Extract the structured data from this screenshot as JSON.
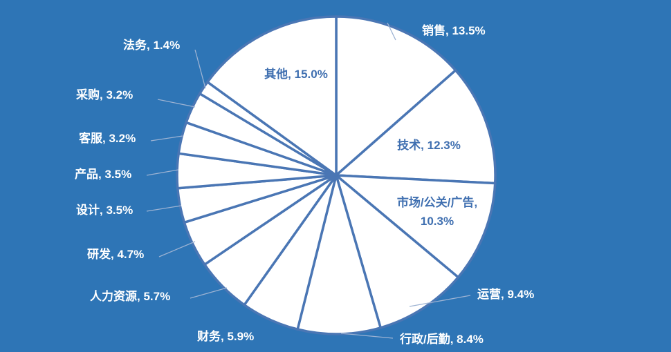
{
  "chart_data": {
    "type": "pie",
    "background_color": "#2e75b6",
    "slice_color": "#ffffff",
    "border_color": "#4a76b4",
    "inside_label_color": "#3f6fb0",
    "outside_label_color": "#ffffff",
    "leader_line_color": "#9db3d3",
    "start": "12 o'clock",
    "direction": "clockwise",
    "slices": [
      {
        "name": "销售",
        "value": 13.5,
        "label": "销售, 13.5%"
      },
      {
        "name": "技术",
        "value": 12.3,
        "label": "技术, 12.3%"
      },
      {
        "name": "市场/公关/广告",
        "value": 10.3,
        "label": "市场/公关/广告,",
        "label2": "10.3%"
      },
      {
        "name": "运营",
        "value": 9.4,
        "label": "运营, 9.4%"
      },
      {
        "name": "行政/后勤",
        "value": 8.4,
        "label": "行政/后勤, 8.4%"
      },
      {
        "name": "财务",
        "value": 5.9,
        "label": "财务, 5.9%"
      },
      {
        "name": "人力资源",
        "value": 5.7,
        "label": "人力资源, 5.7%"
      },
      {
        "name": "研发",
        "value": 4.7,
        "label": "研发, 4.7%"
      },
      {
        "name": "设计",
        "value": 3.5,
        "label": "设计, 3.5%"
      },
      {
        "name": "产品",
        "value": 3.5,
        "label": "产品, 3.5%"
      },
      {
        "name": "客服",
        "value": 3.2,
        "label": "客服, 3.2%"
      },
      {
        "name": "采购",
        "value": 3.2,
        "label": "采购, 3.2%"
      },
      {
        "name": "法务",
        "value": 1.4,
        "label": "法务, 1.4%"
      },
      {
        "name": "其他",
        "value": 15.0,
        "label": "其他, 15.0%"
      }
    ]
  }
}
